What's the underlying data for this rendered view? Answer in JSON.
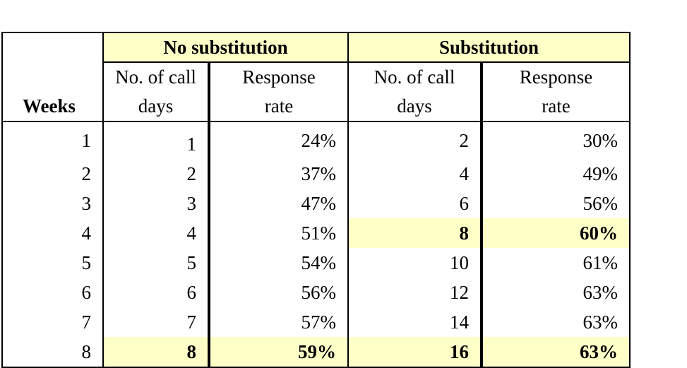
{
  "header": {
    "weeks": "Weeks",
    "groups": [
      "No substitution",
      "Substitution"
    ],
    "subcolumns": [
      {
        "line1": "No. of call",
        "line2": "days"
      },
      {
        "line1": "Response",
        "line2": "rate"
      },
      {
        "line1": "No. of call",
        "line2": "days"
      },
      {
        "line1": "Response",
        "line2": "rate"
      }
    ]
  },
  "highlight_color": "#ffffc8",
  "rows": [
    {
      "week": "1",
      "ns_days": "1",
      "ns_rate": "24%",
      "s_days": "2",
      "s_rate": "30%"
    },
    {
      "week": "2",
      "ns_days": "2",
      "ns_rate": "37%",
      "s_days": "4",
      "s_rate": "49%"
    },
    {
      "week": "3",
      "ns_days": "3",
      "ns_rate": "47%",
      "s_days": "6",
      "s_rate": "56%"
    },
    {
      "week": "4",
      "ns_days": "4",
      "ns_rate": "51%",
      "s_days": "8",
      "s_rate": "60%"
    },
    {
      "week": "5",
      "ns_days": "5",
      "ns_rate": "54%",
      "s_days": "10",
      "s_rate": "61%"
    },
    {
      "week": "6",
      "ns_days": "6",
      "ns_rate": "56%",
      "s_days": "12",
      "s_rate": "63%"
    },
    {
      "week": "7",
      "ns_days": "7",
      "ns_rate": "57%",
      "s_days": "14",
      "s_rate": "63%"
    },
    {
      "week": "8",
      "ns_days": "8",
      "ns_rate": "59%",
      "s_days": "16",
      "s_rate": "63%"
    }
  ]
}
